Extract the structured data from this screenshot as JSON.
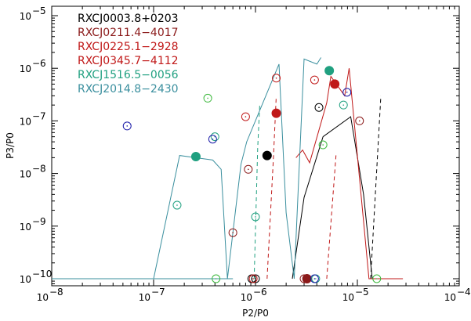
{
  "chart_data": {
    "type": "scatter",
    "title": "",
    "xlabel": "P2/P0",
    "ylabel": "P3/P0",
    "x_scale": "log",
    "y_scale": "log",
    "xlim": [
      1e-08,
      0.0001
    ],
    "ylim": [
      5e-11,
      2e-05
    ],
    "grid": false,
    "legend_position": "top-left",
    "x_ticks": [
      {
        "value": 1e-08,
        "base": "10",
        "exp": "−8"
      },
      {
        "value": 1e-07,
        "base": "10",
        "exp": "−7"
      },
      {
        "value": 1e-06,
        "base": "10",
        "exp": "−6"
      },
      {
        "value": 1e-05,
        "base": "10",
        "exp": "−5"
      },
      {
        "value": 0.0001,
        "base": "10",
        "exp": "−4"
      }
    ],
    "y_ticks": [
      {
        "value": 1e-10,
        "base": "10",
        "exp": "−10"
      },
      {
        "value": 1e-09,
        "base": "10",
        "exp": "−9"
      },
      {
        "value": 1e-08,
        "base": "10",
        "exp": "−8"
      },
      {
        "value": 1e-07,
        "base": "10",
        "exp": "−7"
      },
      {
        "value": 1e-06,
        "base": "10",
        "exp": "−6"
      },
      {
        "value": 1e-05,
        "base": "10",
        "exp": "−5"
      }
    ],
    "series": [
      {
        "name": "RXCJ0003.8+0203",
        "color": "#000000",
        "filled": [
          [
            1.3e-06,
            2.2e-08
          ]
        ],
        "open": [
          [
            4.2e-06,
            1.8e-07
          ],
          [
            9.2e-07,
            1e-10
          ],
          [
            1e-06,
            1e-10
          ]
        ],
        "solid_line": [
          [
            2.3e-06,
            1e-10
          ],
          [
            3e-06,
            3.5e-09
          ],
          [
            4.6e-06,
            5e-08
          ],
          [
            8.6e-06,
            1.2e-07
          ],
          [
            1.15e-05,
            4e-09
          ],
          [
            1.4e-05,
            1e-10
          ]
        ],
        "dashed_line": [
          [
            1.35e-05,
            1e-10
          ],
          [
            1.7e-05,
            3e-07
          ]
        ]
      },
      {
        "name": "RXCJ0211.4−4017",
        "color": "#8b1a1a",
        "filled": [
          [
            3.2e-06,
            1e-10
          ]
        ],
        "open": [
          [
            8.5e-07,
            1.2e-08
          ],
          [
            1.05e-05,
            1e-07
          ],
          [
            3e-06,
            1e-10
          ],
          [
            6e-07,
            7.5e-10
          ]
        ],
        "solid_line": [],
        "dashed_line": []
      },
      {
        "name": "RXCJ0225.1−2928",
        "color": "#c01818",
        "filled": [
          [
            1.6e-06,
            1.4e-07
          ],
          [
            6e-06,
            5e-07
          ]
        ],
        "open": [
          [
            1.6e-06,
            6.5e-07
          ],
          [
            3.8e-06,
            6e-07
          ],
          [
            8e-07,
            1.2e-07
          ],
          [
            9.5e-07,
            1e-10
          ]
        ],
        "solid_line": [
          [
            2.5e-06,
            2e-08
          ],
          [
            2.9e-06,
            2.8e-08
          ],
          [
            3.4e-06,
            1.6e-08
          ],
          [
            5e-06,
            2.2e-07
          ],
          [
            5.5e-06,
            7e-07
          ],
          [
            7.5e-06,
            3e-07
          ],
          [
            8.3e-06,
            1e-06
          ],
          [
            1.3e-05,
            1e-10
          ],
          [
            2.8e-05,
            1e-10
          ]
        ],
        "dashed_line": [
          [
            1.3e-06,
            1e-10
          ],
          [
            1.5e-06,
            2e-08
          ],
          [
            1.6e-06,
            3e-07
          ]
        ]
      },
      {
        "name": "RXCJ0345.7−4112",
        "color": "#c01818",
        "filled": [],
        "open": [],
        "solid_line": [],
        "dashed_line": [
          [
            5e-06,
            1e-10
          ],
          [
            6.2e-06,
            2.5e-08
          ]
        ]
      },
      {
        "name": "RXCJ1516.5−0056",
        "color": "#20a080",
        "filled": [
          [
            2.6e-07,
            2.1e-08
          ],
          [
            5.3e-06,
            9e-07
          ]
        ],
        "open": [
          [
            1.7e-07,
            2.5e-09
          ],
          [
            4e-07,
            5e-08
          ],
          [
            7.3e-06,
            2e-07
          ],
          [
            1e-06,
            1.5e-09
          ],
          [
            3.9e-06,
            1e-10
          ]
        ],
        "solid_line": [],
        "dashed_line": [
          [
            9.7e-07,
            1e-10
          ],
          [
            1.05e-06,
            3e-08
          ],
          [
            1.1e-06,
            2e-07
          ]
        ]
      },
      {
        "name": "RXCJ2014.8−2430",
        "color": "#3a8f9e",
        "filled": [],
        "open": [
          [
            5.5e-08,
            8e-08
          ],
          [
            3.4e-07,
            2.7e-07
          ],
          [
            3.8e-07,
            4.5e-08
          ],
          [
            4.1e-07,
            1e-10
          ],
          [
            7.9e-06,
            3.5e-07
          ],
          [
            4.6e-06,
            3.5e-08
          ],
          [
            3.8e-06,
            1e-10
          ],
          [
            1.55e-05,
            1e-10
          ]
        ],
        "solid_line": [
          [
            1e-08,
            1e-10
          ],
          [
            4e-07,
            1e-10
          ],
          [
            5e-07,
            1e-10
          ],
          [
            6e-07,
            1e-10
          ],
          [
            1e-07,
            1e-10
          ],
          [
            1.8e-07,
            2.2e-08
          ],
          [
            3.8e-07,
            1.8e-08
          ],
          [
            4.6e-07,
            1.2e-08
          ],
          [
            5.3e-07,
            1e-10
          ],
          [
            7.2e-07,
            1.5e-08
          ],
          [
            8.2e-07,
            4e-08
          ],
          [
            1.7e-06,
            1.2e-06
          ],
          [
            2e-06,
            1.8e-09
          ],
          [
            2.4e-06,
            1e-10
          ],
          [
            3e-06,
            1.5e-06
          ],
          [
            4e-06,
            1.2e-06
          ],
          [
            4.4e-06,
            1.6e-06
          ]
        ],
        "dashed_line": []
      }
    ],
    "open_marker_colors": [
      "#1a1aa8",
      "#1a1aa8",
      "#6b2a14",
      "#3cb83c",
      "#3cb83c"
    ]
  }
}
